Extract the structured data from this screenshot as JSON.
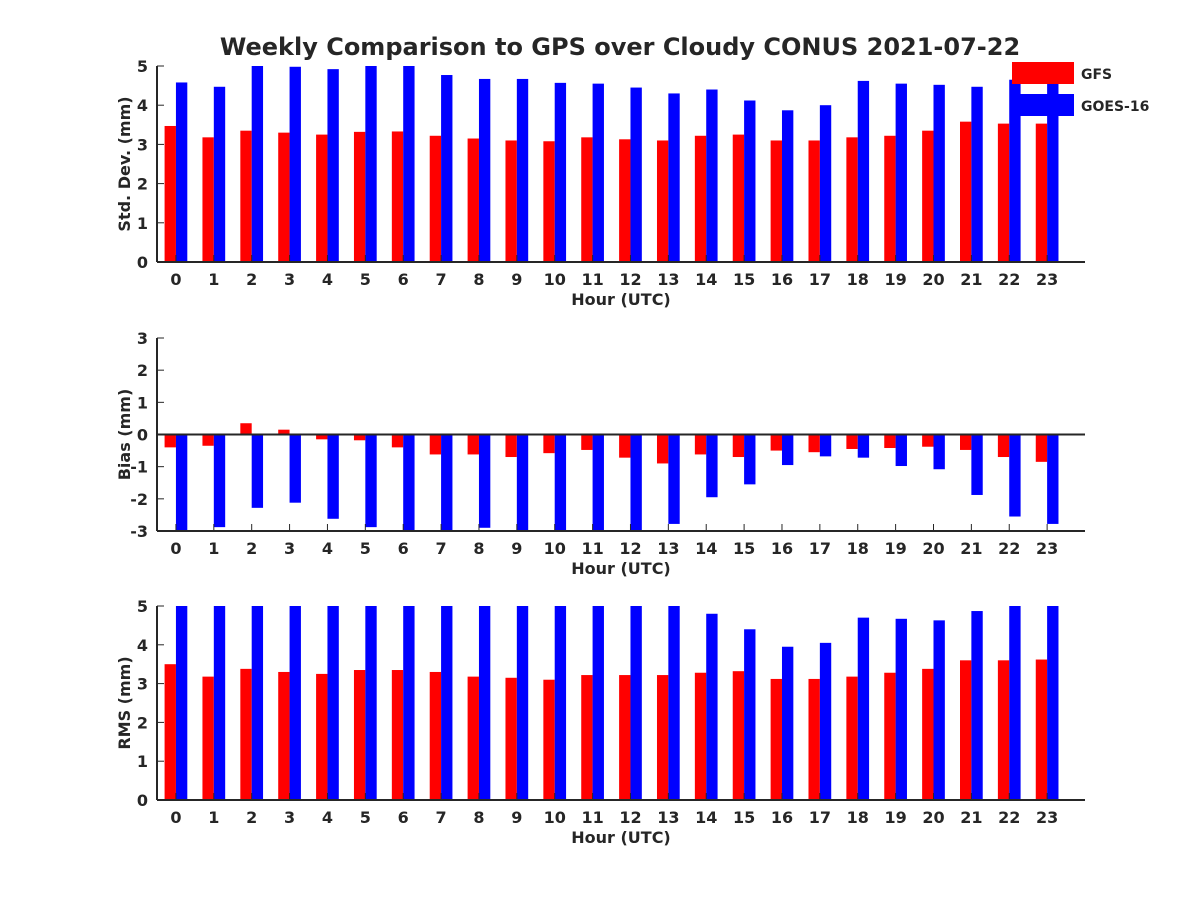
{
  "title": "Weekly Comparison to GPS over Cloudy CONUS 2021-07-22",
  "colors": {
    "GFS": "#ff0000",
    "GOES-16": "#0000ff",
    "axis": "#262626"
  },
  "legend": {
    "placement": "top-right",
    "entries": [
      "GFS",
      "GOES-16"
    ]
  },
  "chart_data": [
    {
      "type": "bar",
      "xlabel": "Hour (UTC)",
      "ylabel": "Std. Dev. (mm)",
      "ylim": [
        0,
        5
      ],
      "yticks": [
        0,
        1,
        2,
        3,
        4,
        5
      ],
      "categories": [
        "0",
        "1",
        "2",
        "3",
        "4",
        "5",
        "6",
        "7",
        "8",
        "9",
        "10",
        "11",
        "12",
        "13",
        "14",
        "15",
        "16",
        "17",
        "18",
        "19",
        "20",
        "21",
        "22",
        "23"
      ],
      "series": [
        {
          "name": "GFS",
          "color": "#ff0000",
          "values": [
            3.47,
            3.18,
            3.35,
            3.3,
            3.25,
            3.32,
            3.33,
            3.22,
            3.15,
            3.1,
            3.08,
            3.18,
            3.13,
            3.1,
            3.22,
            3.25,
            3.1,
            3.1,
            3.18,
            3.22,
            3.35,
            3.58,
            3.53,
            3.53
          ]
        },
        {
          "name": "GOES-16",
          "color": "#0000ff",
          "values": [
            4.58,
            4.47,
            5.0,
            4.98,
            4.92,
            5.0,
            5.0,
            4.77,
            4.67,
            4.67,
            4.57,
            4.55,
            4.45,
            4.3,
            4.4,
            4.12,
            3.87,
            4.0,
            4.62,
            4.55,
            4.52,
            4.47,
            4.65,
            4.65
          ]
        }
      ]
    },
    {
      "type": "bar",
      "xlabel": "Hour (UTC)",
      "ylabel": "Bias (mm)",
      "ylim": [
        -3,
        3
      ],
      "yticks": [
        -3,
        -2,
        -1,
        0,
        1,
        2,
        3
      ],
      "categories": [
        "0",
        "1",
        "2",
        "3",
        "4",
        "5",
        "6",
        "7",
        "8",
        "9",
        "10",
        "11",
        "12",
        "13",
        "14",
        "15",
        "16",
        "17",
        "18",
        "19",
        "20",
        "21",
        "22",
        "23"
      ],
      "series": [
        {
          "name": "GFS",
          "color": "#ff0000",
          "values": [
            -0.4,
            -0.35,
            0.35,
            0.15,
            -0.15,
            -0.18,
            -0.4,
            -0.62,
            -0.62,
            -0.7,
            -0.58,
            -0.48,
            -0.72,
            -0.9,
            -0.62,
            -0.7,
            -0.5,
            -0.55,
            -0.45,
            -0.42,
            -0.38,
            -0.48,
            -0.7,
            -0.85
          ]
        },
        {
          "name": "GOES-16",
          "color": "#0000ff",
          "values": [
            -3.0,
            -2.88,
            -2.28,
            -2.12,
            -2.62,
            -2.88,
            -3.0,
            -3.0,
            -2.9,
            -3.0,
            -3.0,
            -3.0,
            -3.0,
            -2.78,
            -1.95,
            -1.55,
            -0.95,
            -0.68,
            -0.72,
            -0.98,
            -1.08,
            -1.88,
            -2.55,
            -2.78
          ]
        }
      ]
    },
    {
      "type": "bar",
      "xlabel": "Hour (UTC)",
      "ylabel": "RMS (mm)",
      "ylim": [
        0,
        5
      ],
      "yticks": [
        0,
        1,
        2,
        3,
        4,
        5
      ],
      "categories": [
        "0",
        "1",
        "2",
        "3",
        "4",
        "5",
        "6",
        "7",
        "8",
        "9",
        "10",
        "11",
        "12",
        "13",
        "14",
        "15",
        "16",
        "17",
        "18",
        "19",
        "20",
        "21",
        "22",
        "23"
      ],
      "series": [
        {
          "name": "GFS",
          "color": "#ff0000",
          "values": [
            3.5,
            3.18,
            3.38,
            3.3,
            3.25,
            3.35,
            3.35,
            3.3,
            3.18,
            3.15,
            3.1,
            3.22,
            3.22,
            3.22,
            3.28,
            3.32,
            3.12,
            3.12,
            3.18,
            3.28,
            3.38,
            3.6,
            3.6,
            3.62
          ]
        },
        {
          "name": "GOES-16",
          "color": "#0000ff",
          "values": [
            5.0,
            5.0,
            5.0,
            5.0,
            5.0,
            5.0,
            5.0,
            5.0,
            5.0,
            5.0,
            5.0,
            5.0,
            5.0,
            5.0,
            4.8,
            4.4,
            3.95,
            4.05,
            4.7,
            4.67,
            4.63,
            4.87,
            5.0,
            5.0
          ]
        }
      ]
    }
  ]
}
